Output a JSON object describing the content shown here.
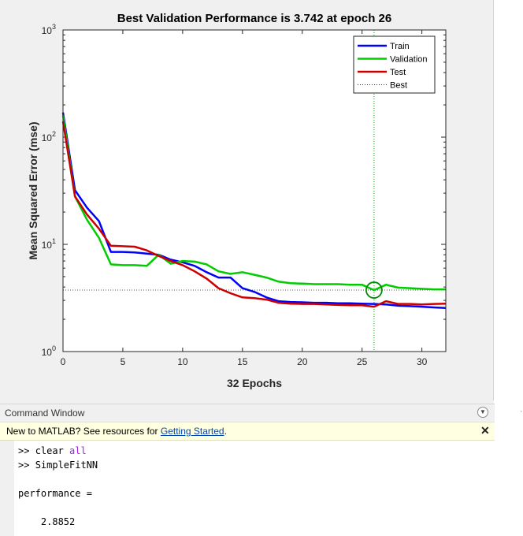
{
  "chart_data": {
    "type": "line",
    "title": "Best Validation Performance is 3.742 at epoch 26",
    "xlabel": "32 Epochs",
    "ylabel": "Mean Squared Error  (mse)",
    "yscale": "log",
    "xlim": [
      0,
      32
    ],
    "ylim": [
      1,
      1000
    ],
    "xticks": [
      0,
      5,
      10,
      15,
      20,
      25,
      30
    ],
    "yticks": [
      {
        "value": 1,
        "base": "10",
        "exp": "0"
      },
      {
        "value": 10,
        "base": "10",
        "exp": "1"
      },
      {
        "value": 100,
        "base": "10",
        "exp": "2"
      },
      {
        "value": 1000,
        "base": "10",
        "exp": "3"
      }
    ],
    "series": [
      {
        "name": "Train",
        "color": "#0000ff",
        "x": [
          0,
          1,
          2,
          3,
          4,
          5,
          6,
          7,
          8,
          9,
          10,
          11,
          12,
          13,
          14,
          15,
          16,
          17,
          18,
          19,
          20,
          21,
          22,
          23,
          24,
          25,
          26,
          27,
          28,
          29,
          30,
          31,
          32
        ],
        "y": [
          170,
          32,
          22,
          16.5,
          8.5,
          8.5,
          8.4,
          8.2,
          8.0,
          7.2,
          6.8,
          6.3,
          5.5,
          4.9,
          4.9,
          3.9,
          3.6,
          3.2,
          2.95,
          2.9,
          2.88,
          2.85,
          2.85,
          2.82,
          2.82,
          2.8,
          2.78,
          2.75,
          2.68,
          2.65,
          2.62,
          2.58,
          2.55
        ]
      },
      {
        "name": "Validation",
        "color": "#00cc00",
        "x": [
          0,
          1,
          2,
          3,
          4,
          5,
          6,
          7,
          8,
          9,
          10,
          11,
          12,
          13,
          14,
          15,
          16,
          17,
          18,
          19,
          20,
          21,
          22,
          23,
          24,
          25,
          26,
          27,
          28,
          29,
          30,
          31,
          32
        ],
        "y": [
          160,
          28,
          17,
          11.5,
          6.5,
          6.4,
          6.4,
          6.3,
          8.0,
          6.6,
          7.0,
          6.9,
          6.5,
          5.6,
          5.3,
          5.5,
          5.2,
          4.9,
          4.5,
          4.35,
          4.3,
          4.25,
          4.25,
          4.25,
          4.2,
          4.2,
          3.742,
          4.2,
          3.95,
          3.9,
          3.85,
          3.8,
          3.8
        ]
      },
      {
        "name": "Test",
        "color": "#cc0000",
        "x": [
          0,
          1,
          2,
          3,
          4,
          5,
          6,
          7,
          8,
          9,
          10,
          11,
          12,
          13,
          14,
          15,
          16,
          17,
          18,
          19,
          20,
          21,
          22,
          23,
          24,
          25,
          26,
          27,
          28,
          29,
          30,
          31,
          32
        ],
        "y": [
          140,
          28,
          19,
          14,
          9.7,
          9.6,
          9.5,
          8.8,
          7.8,
          7.0,
          6.4,
          5.6,
          4.8,
          3.9,
          3.5,
          3.2,
          3.15,
          3.05,
          2.85,
          2.8,
          2.78,
          2.78,
          2.75,
          2.72,
          2.7,
          2.7,
          2.62,
          2.95,
          2.78,
          2.78,
          2.75,
          2.78,
          2.8
        ]
      }
    ],
    "legend": {
      "position": "top-right",
      "entries": [
        "Train",
        "Validation",
        "Test",
        "Best"
      ]
    },
    "best": {
      "epoch": 26,
      "value": 3.742,
      "label": "Best"
    }
  },
  "command_window": {
    "title": "Command Window",
    "info_text": "New to MATLAB? See resources for ",
    "info_link": "Getting Started",
    "info_suffix": ".",
    "close_glyph": "✕",
    "menu_glyph": "▼",
    "lines": [
      {
        "prompt": ">> ",
        "cmd": "clear ",
        "kw": "all"
      },
      {
        "prompt": ">> ",
        "cmd": "SimpleFitNN",
        "kw": ""
      },
      {
        "text": "performance ="
      },
      {
        "text": "    2.8852"
      }
    ]
  }
}
